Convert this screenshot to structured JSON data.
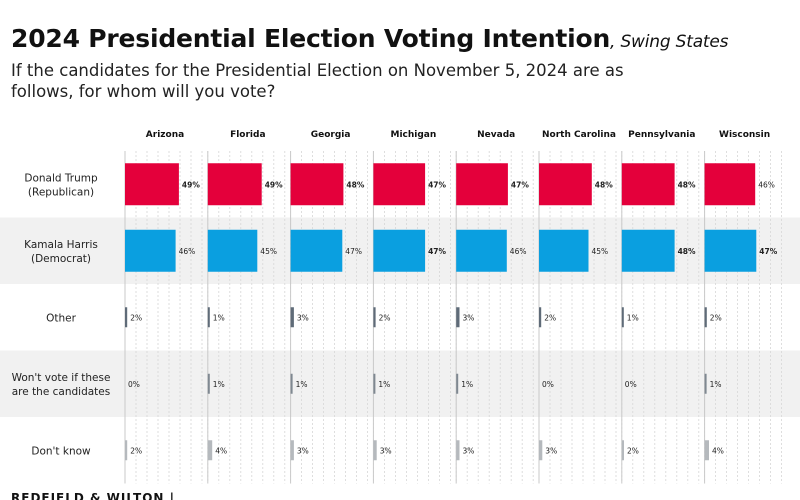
{
  "header": {
    "title": "2024 Presidential Election Voting Intention",
    "title_suffix": ", Swing States",
    "question": "If the candidates for the Presidential Election on November 5, 2024 are as follows, for whom will you vote?"
  },
  "chart_data": {
    "type": "bar",
    "orientation": "horizontal-small-multiples",
    "title": "2024 Presidential Election Voting Intention, Swing States",
    "categories": [
      "Arizona",
      "Florida",
      "Georgia",
      "Michigan",
      "Nevada",
      "North Carolina",
      "Pennsylvania",
      "Wisconsin"
    ],
    "series": [
      {
        "name": "Donald Trump (Republican)",
        "label_lines": [
          "Donald Trump",
          "(Republican)"
        ],
        "values": [
          49,
          49,
          48,
          47,
          47,
          48,
          48,
          46
        ],
        "bold": [
          true,
          true,
          true,
          true,
          true,
          true,
          true,
          false
        ],
        "color": "#e4003b"
      },
      {
        "name": "Kamala Harris (Democrat)",
        "label_lines": [
          "Kamala Harris",
          "(Democrat)"
        ],
        "values": [
          46,
          45,
          47,
          47,
          46,
          45,
          48,
          47
        ],
        "bold": [
          false,
          false,
          false,
          true,
          false,
          false,
          true,
          true
        ],
        "color": "#0a9fe0"
      },
      {
        "name": "Other",
        "label_lines": [
          "Other"
        ],
        "values": [
          2,
          1,
          3,
          2,
          3,
          2,
          1,
          2
        ],
        "bold": [
          false,
          false,
          false,
          false,
          false,
          false,
          false,
          false
        ],
        "color": "#5f6b78"
      },
      {
        "name": "Won't vote if these are the candidates",
        "label_lines": [
          "Won't vote if these",
          "are the candidates"
        ],
        "values": [
          0,
          1,
          1,
          1,
          1,
          0,
          0,
          1
        ],
        "bold": [
          false,
          false,
          false,
          false,
          false,
          false,
          false,
          false
        ],
        "color": "#7f8891"
      },
      {
        "name": "Don't know",
        "label_lines": [
          "Don't know"
        ],
        "values": [
          2,
          4,
          3,
          3,
          3,
          3,
          2,
          4
        ],
        "bold": [
          false,
          false,
          false,
          false,
          false,
          false,
          false,
          false
        ],
        "color": "#b5b9bd"
      }
    ],
    "value_format": "{v}%",
    "xlim": [
      0,
      100
    ],
    "grid": true,
    "row_shading": "alternating"
  },
  "footer": {
    "source": "REDFIELD & WILTON |"
  }
}
